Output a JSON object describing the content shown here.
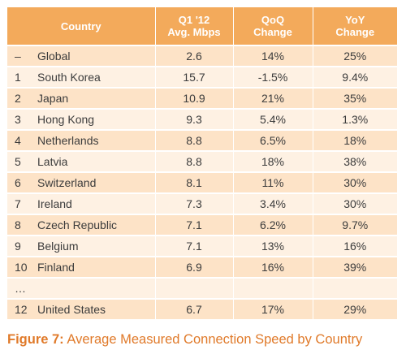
{
  "table": {
    "headers": {
      "country": "Country",
      "speed_line1": "Q1 '12",
      "speed_line2": "Avg. Mbps",
      "qoq_line1": "QoQ",
      "qoq_line2": "Change",
      "yoy_line1": "YoY",
      "yoy_line2": "Change"
    },
    "rows": [
      {
        "rank": "–",
        "country": "Global",
        "speed": "2.6",
        "qoq": "14%",
        "yoy": "25%"
      },
      {
        "rank": "1",
        "country": "South Korea",
        "speed": "15.7",
        "qoq": "-1.5%",
        "yoy": "9.4%"
      },
      {
        "rank": "2",
        "country": "Japan",
        "speed": "10.9",
        "qoq": "21%",
        "yoy": "35%"
      },
      {
        "rank": "3",
        "country": "Hong Kong",
        "speed": "9.3",
        "qoq": "5.4%",
        "yoy": "1.3%"
      },
      {
        "rank": "4",
        "country": "Netherlands",
        "speed": "8.8",
        "qoq": "6.5%",
        "yoy": "18%"
      },
      {
        "rank": "5",
        "country": "Latvia",
        "speed": "8.8",
        "qoq": "18%",
        "yoy": "38%"
      },
      {
        "rank": "6",
        "country": "Switzerland",
        "speed": "8.1",
        "qoq": "11%",
        "yoy": "30%"
      },
      {
        "rank": "7",
        "country": "Ireland",
        "speed": "7.3",
        "qoq": "3.4%",
        "yoy": "30%"
      },
      {
        "rank": "8",
        "country": "Czech Republic",
        "speed": "7.1",
        "qoq": "6.2%",
        "yoy": "9.7%"
      },
      {
        "rank": "9",
        "country": "Belgium",
        "speed": "7.1",
        "qoq": "13%",
        "yoy": "16%"
      },
      {
        "rank": "10",
        "country": "Finland",
        "speed": "6.9",
        "qoq": "16%",
        "yoy": "39%"
      },
      {
        "rank": "…",
        "country": "",
        "speed": "",
        "qoq": "",
        "yoy": ""
      },
      {
        "rank": "12",
        "country": "United States",
        "speed": "6.7",
        "qoq": "17%",
        "yoy": "29%"
      }
    ]
  },
  "caption": {
    "figure_label": "Figure 7:",
    "text": " Average Measured Connection Speed by Country"
  },
  "colors": {
    "header_bg": "#f3aa5b",
    "row_dark": "#fde3c7",
    "row_light": "#fef1e3",
    "caption": "#e07a2a"
  }
}
